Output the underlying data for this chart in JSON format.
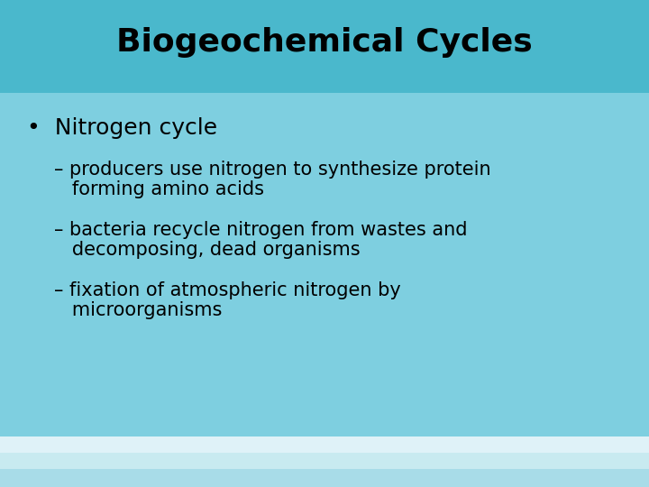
{
  "title": "Biogeochemical Cycles",
  "title_fontsize": 26,
  "title_color": "#000000",
  "title_bg_color": "#4ab8cc",
  "body_bg_color": "#7ecfe0",
  "bottom_bar_color1": "#a8dce8",
  "bottom_bar_color2": "#c8eaf0",
  "bottom_bar_color3": "#dff2f8",
  "bullet_text": "Nitrogen cycle",
  "bullet_fontsize": 18,
  "sub_items": [
    "– producers use nitrogen to synthesize protein\n   forming amino acids",
    "– bacteria recycle nitrogen from wastes and\n   decomposing, dead organisms",
    "– fixation of atmospheric nitrogen by\n   microorganisms"
  ],
  "sub_fontsize": 15,
  "text_color": "#000000"
}
